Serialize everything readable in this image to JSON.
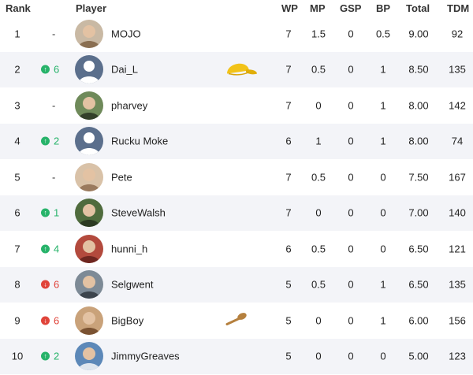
{
  "header": {
    "rank": "Rank",
    "player": "Player",
    "wp": "WP",
    "mp": "MP",
    "gsp": "GSP",
    "bp": "BP",
    "total": "Total",
    "tdm": "TDM"
  },
  "rows": [
    {
      "rank": "1",
      "move": "-",
      "name": "MOJO",
      "wp": "7",
      "mp": "1.5",
      "gsp": "0",
      "bp": "0.5",
      "total": "9.00",
      "tdm": "92"
    },
    {
      "rank": "2",
      "move": "6",
      "name": "Dai_L",
      "wp": "7",
      "mp": "0.5",
      "gsp": "0",
      "bp": "1",
      "total": "8.50",
      "tdm": "135"
    },
    {
      "rank": "3",
      "move": "-",
      "name": "pharvey",
      "wp": "7",
      "mp": "0",
      "gsp": "0",
      "bp": "1",
      "total": "8.00",
      "tdm": "142"
    },
    {
      "rank": "4",
      "move": "2",
      "name": "Rucku Moke",
      "wp": "6",
      "mp": "1",
      "gsp": "0",
      "bp": "1",
      "total": "8.00",
      "tdm": "74"
    },
    {
      "rank": "5",
      "move": "-",
      "name": "Pete",
      "wp": "7",
      "mp": "0.5",
      "gsp": "0",
      "bp": "0",
      "total": "7.50",
      "tdm": "167"
    },
    {
      "rank": "6",
      "move": "1",
      "name": "SteveWalsh",
      "wp": "7",
      "mp": "0",
      "gsp": "0",
      "bp": "0",
      "total": "7.00",
      "tdm": "140"
    },
    {
      "rank": "7",
      "move": "4",
      "name": "hunni_h",
      "wp": "6",
      "mp": "0.5",
      "gsp": "0",
      "bp": "0",
      "total": "6.50",
      "tdm": "121"
    },
    {
      "rank": "8",
      "move": "6",
      "name": "Selgwent",
      "wp": "5",
      "mp": "0.5",
      "gsp": "0",
      "bp": "1",
      "total": "6.50",
      "tdm": "135"
    },
    {
      "rank": "9",
      "move": "6",
      "name": "BigBoy",
      "wp": "5",
      "mp": "0",
      "gsp": "0",
      "bp": "1",
      "total": "6.00",
      "tdm": "156"
    },
    {
      "rank": "10",
      "move": "2",
      "name": "JimmyGreaves",
      "wp": "5",
      "mp": "0",
      "gsp": "0",
      "bp": "0",
      "total": "5.00",
      "tdm": "123"
    }
  ],
  "movement_direction": [
    "none",
    "up",
    "none",
    "up",
    "none",
    "up",
    "up",
    "down",
    "down",
    "up"
  ],
  "avatars": [
    "photo-icon",
    "default-user-icon",
    "photo-icon",
    "default-user-icon",
    "photo-icon",
    "photo-icon",
    "photo-icon",
    "photo-icon",
    "photo-icon",
    "photo-icon"
  ],
  "badges": {
    "row_2": "yellow-cap-icon",
    "row_9": "wooden-spoon-icon"
  },
  "colors": {
    "up": "#27b36a",
    "down": "#e0443a",
    "row_shade": "#f3f4f8",
    "avatar_default": "#5b6f8c",
    "cap": "#f2c318"
  }
}
